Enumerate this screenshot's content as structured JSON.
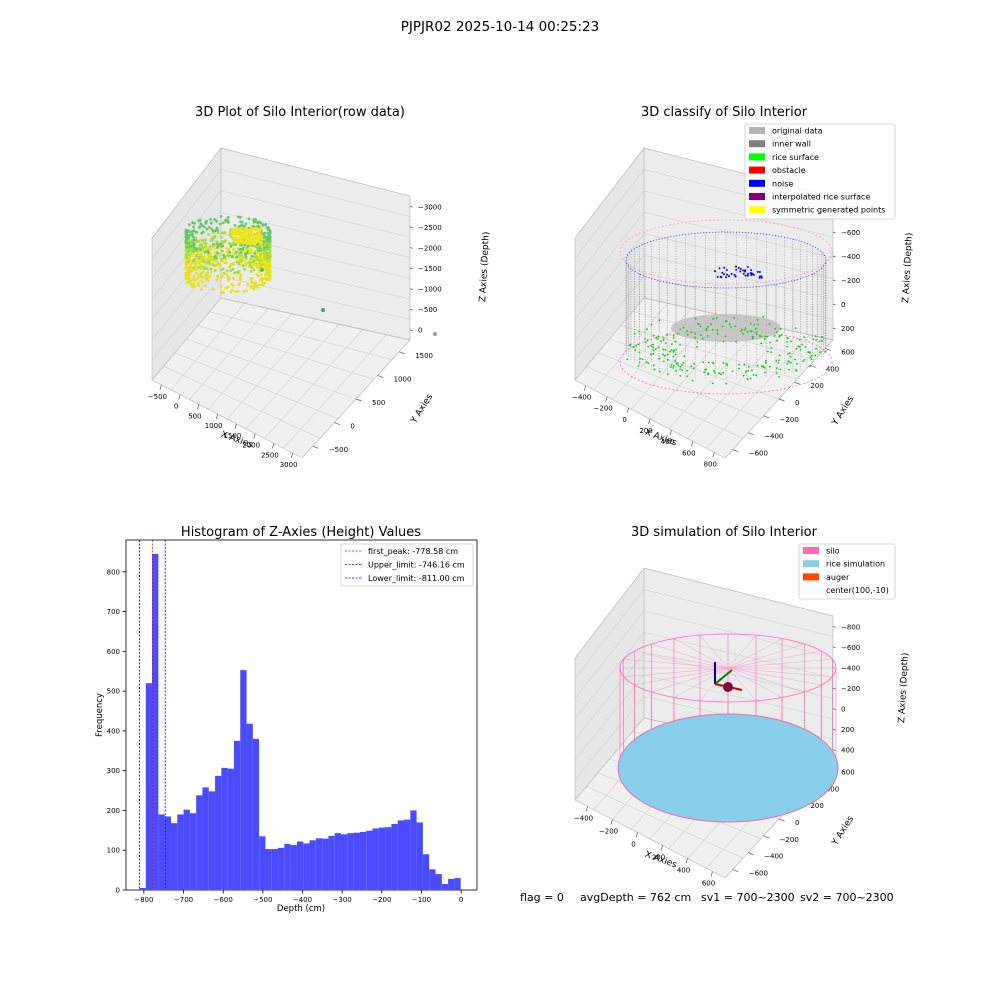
{
  "figure": {
    "suptitle": "PJPJR02 2025-10-14 00:25:23",
    "footer": {
      "flag": "flag = 0",
      "avg_depth": "avgDepth = 762 cm",
      "sv1": "sv1 = 700~2300",
      "sv2": "sv2 = 700~2300"
    }
  },
  "chart_data": [
    {
      "type": "scatter",
      "subtype": "3d",
      "title": "3D Plot of Silo Interior(row data)",
      "xlabel": "X Axies",
      "ylabel": "Y Axies",
      "zlabel": "Z Axies (Depth)",
      "x_ticks": [
        "−500",
        "0",
        "500",
        "1000",
        "1500",
        "2000",
        "2500",
        "3000"
      ],
      "y_ticks": [
        "−500",
        "0",
        "500",
        "1000",
        "1500"
      ],
      "z_ticks": [
        "−3000",
        "−2500",
        "−2000",
        "−1500",
        "−1000",
        "−500",
        "0"
      ],
      "colormap": "viridis",
      "outlier_points": [
        {
          "x": 1500,
          "y": 0,
          "z": -2600
        },
        {
          "x": 2900,
          "y": 1000,
          "z": -3000
        }
      ]
    },
    {
      "type": "scatter",
      "subtype": "3d",
      "title": "3D classify of Silo Interior",
      "xlabel": "X Axies",
      "ylabel": "Y Axies",
      "zlabel": "Z Axies (Depth)",
      "x_ticks": [
        "−400",
        "−200",
        "0",
        "200",
        "400",
        "600",
        "800"
      ],
      "y_ticks": [
        "−600",
        "−400",
        "−200",
        "0",
        "200",
        "400",
        "600"
      ],
      "z_ticks": [
        "−800",
        "−600",
        "−400",
        "−200",
        "0",
        "200"
      ],
      "legend_position": "top-right",
      "legend": [
        {
          "label": "original data",
          "color": "#b3b3b3"
        },
        {
          "label": "inner wall",
          "color": "#808080"
        },
        {
          "label": "rice surface",
          "color": "#00ff00"
        },
        {
          "label": "obstacle",
          "color": "#ff0000"
        },
        {
          "label": "noise",
          "color": "#0000ff"
        },
        {
          "label": "interpolated rice surface",
          "color": "#800080"
        },
        {
          "label": "symmetric generated points",
          "color": "#ffff00"
        }
      ]
    },
    {
      "type": "bar",
      "subtype": "histogram",
      "title": "Histogram of Z-Axies (Height) Values",
      "xlabel": "Depth (cm)",
      "ylabel": "Frequency",
      "xlim": [
        -845,
        40
      ],
      "ylim": [
        0,
        880
      ],
      "x_ticks": [
        -800,
        -700,
        -600,
        -500,
        -400,
        -300,
        -200,
        -100,
        0
      ],
      "x_tick_labels": [
        "−800",
        "−700",
        "−600",
        "−500",
        "−400",
        "−300",
        "−200",
        "−100",
        "0"
      ],
      "y_ticks": [
        0,
        100,
        200,
        300,
        400,
        500,
        600,
        700,
        800
      ],
      "bar_color": "#4b4bff",
      "bins": {
        "start": -811.0,
        "width": 15.88,
        "values": [
          5,
          520,
          845,
          190,
          185,
          168,
          190,
          202,
          193,
          238,
          258,
          248,
          287,
          307,
          305,
          375,
          553,
          418,
          380,
          135,
          103,
          103,
          106,
          116,
          113,
          122,
          117,
          125,
          130,
          129,
          136,
          143,
          140,
          143,
          144,
          146,
          149,
          155,
          157,
          158,
          166,
          175,
          177,
          200,
          170,
          90,
          52,
          40,
          15,
          28,
          30
        ]
      },
      "vlines": [
        {
          "label": "first_peak: -778.58 cm",
          "x": -778.58,
          "color": "#ff0000"
        },
        {
          "label": "Upper_limit: -746.16 cm",
          "x": -746.16,
          "color": "#0000cc"
        },
        {
          "label": "Lower_limit: -811.00 cm",
          "x": -811.0,
          "color": "#0000cc"
        }
      ],
      "legend_position": "top-right"
    },
    {
      "type": "scatter",
      "subtype": "3d-wireframe",
      "title": "3D simulation of Silo Interior",
      "xlabel": "X Axies",
      "ylabel": "Y Axies",
      "zlabel": "Z Axies (Depth)",
      "x_ticks": [
        "−400",
        "−200",
        "0",
        "200",
        "400",
        "600"
      ],
      "y_ticks": [
        "−600",
        "−400",
        "−200",
        "0",
        "200",
        "400",
        "600"
      ],
      "z_ticks": [
        "−800",
        "−600",
        "−400",
        "−200",
        "0",
        "200",
        "400"
      ],
      "legend_position": "top-right",
      "legend": [
        {
          "label": "silo",
          "color": "#ff69b4"
        },
        {
          "label": "rice simulation",
          "color": "#87ceeb"
        },
        {
          "label": "auger",
          "color": "#ff4500"
        },
        {
          "label": "center(100,-10)",
          "color": ""
        }
      ]
    }
  ]
}
